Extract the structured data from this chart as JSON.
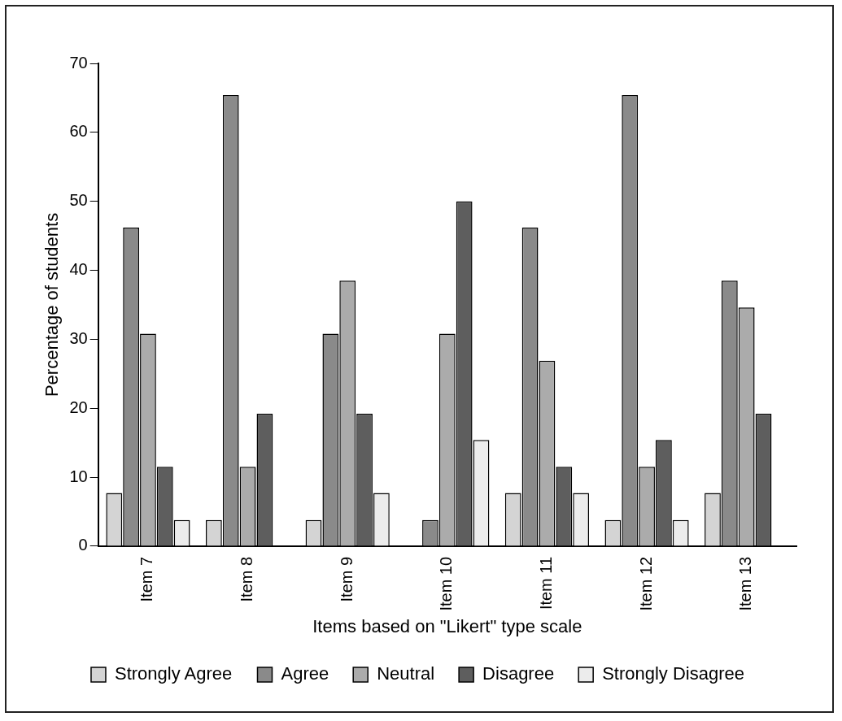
{
  "chart_data": {
    "type": "bar",
    "xlabel": "Items based on \"Likert\" type scale",
    "ylabel": "Percentage of students",
    "categories": [
      "Item 7",
      "Item 8",
      "Item 9",
      "Item 10",
      "Item 11",
      "Item 12",
      "Item 13"
    ],
    "series": [
      {
        "name": "Strongly Agree",
        "color": "#d4d4d4",
        "values": [
          7.7,
          3.8,
          3.8,
          0,
          7.7,
          3.8,
          7.7
        ]
      },
      {
        "name": "Agree",
        "color": "#8a8a8a",
        "values": [
          46.2,
          65.4,
          30.8,
          3.8,
          46.2,
          65.4,
          38.5
        ]
      },
      {
        "name": "Neutral",
        "color": "#ababab",
        "values": [
          30.8,
          11.5,
          38.5,
          30.8,
          26.9,
          11.5,
          34.6
        ]
      },
      {
        "name": "Disagree",
        "color": "#5e5e5e",
        "values": [
          11.5,
          19.2,
          19.2,
          50,
          11.5,
          15.4,
          19.2
        ]
      },
      {
        "name": "Strongly Disagree",
        "color": "#ececec",
        "values": [
          3.8,
          0,
          7.7,
          15.4,
          7.7,
          3.8,
          0
        ]
      }
    ],
    "ylim": [
      0,
      70
    ],
    "yticks": [
      0,
      10,
      20,
      30,
      40,
      50,
      60,
      70
    ],
    "grid": false,
    "legend": "bottom"
  }
}
